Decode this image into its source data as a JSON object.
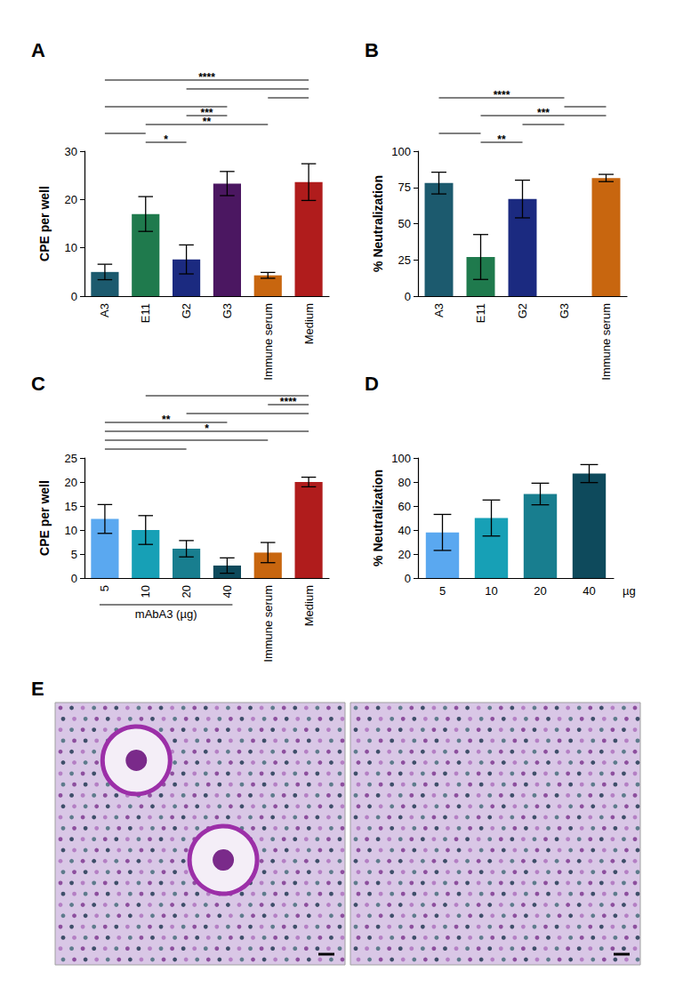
{
  "chart_data": [
    {
      "type": "bar",
      "title": "A",
      "y_label": "CPE per well",
      "categories": [
        "A3",
        "E11",
        "G2",
        "G3",
        "Immune serum",
        "Medium"
      ],
      "values": [
        5.0,
        17.0,
        7.6,
        23.3,
        4.3,
        23.6
      ],
      "errors": [
        1.6,
        3.6,
        3.0,
        2.5,
        0.6,
        3.8
      ],
      "colors": [
        "#1c5a6e",
        "#1f7a4d",
        "#1b2a80",
        "#4b1761",
        "#c8660f",
        "#b01c1c"
      ],
      "ylim": [
        0,
        30
      ],
      "yticks": [
        0,
        10,
        20,
        30
      ],
      "grid": false,
      "significance": [
        {
          "from": "A3",
          "to": "Medium",
          "label": "****"
        },
        {
          "from": "G2",
          "to": "Medium"
        },
        {
          "from": "Immune serum",
          "to": "Medium"
        },
        {
          "from": "A3",
          "to": "G3"
        },
        {
          "from": "G2",
          "to": "G3",
          "label": "***"
        },
        {
          "from": "E11",
          "to": "Immune serum",
          "label": "**"
        },
        {
          "from": "A3",
          "to": "E11"
        },
        {
          "from": "E11",
          "to": "G2",
          "label": "*"
        }
      ]
    },
    {
      "type": "bar",
      "title": "B",
      "y_label": "% Neutralization",
      "categories": [
        "A3",
        "E11",
        "G2",
        "G3",
        "Immune serum"
      ],
      "values": [
        78,
        27,
        67,
        0,
        81.5
      ],
      "errors": [
        7.5,
        15.5,
        13,
        null,
        2.5
      ],
      "colors": [
        "#1c5a6e",
        "#1f7a4d",
        "#1b2a80",
        "#4b1761",
        "#c8660f"
      ],
      "ylim": [
        0,
        100
      ],
      "yticks": [
        0,
        25,
        50,
        75,
        100
      ],
      "grid": false,
      "significance": [
        {
          "from": "A3",
          "to": "G3",
          "label": "****"
        },
        {
          "from": "G3",
          "to": "Immune serum"
        },
        {
          "from": "E11",
          "to": "Immune serum",
          "label": "***"
        },
        {
          "from": "G2",
          "to": "G3"
        },
        {
          "from": "A3",
          "to": "E11"
        },
        {
          "from": "E11",
          "to": "G2",
          "label": "**"
        }
      ]
    },
    {
      "type": "bar",
      "title": "C",
      "y_label": "CPE per well",
      "categories": [
        "5",
        "10",
        "20",
        "40",
        "Immune serum",
        "Medium"
      ],
      "values": [
        12.3,
        10.0,
        6.1,
        2.6,
        5.3,
        20.0
      ],
      "errors": [
        3.0,
        3.0,
        1.7,
        1.6,
        2.1,
        1.0
      ],
      "colors": [
        "#5aa8f0",
        "#17a0b6",
        "#187e8f",
        "#0e4a5c",
        "#c8660f",
        "#b01c1c"
      ],
      "ylim": [
        0,
        25
      ],
      "yticks": [
        0,
        5,
        10,
        15,
        20,
        25
      ],
      "grid": false,
      "group_label": {
        "text": "mAbA3 (µg)",
        "from": "5",
        "to": "40"
      },
      "significance": [
        {
          "from": "10",
          "to": "Medium"
        },
        {
          "from": "Immune serum",
          "to": "Medium",
          "label": "****"
        },
        {
          "from": "20",
          "to": "Medium"
        },
        {
          "from": "5",
          "to": "40",
          "label": "**"
        },
        {
          "from": "5",
          "to": "Medium",
          "label": "*"
        },
        {
          "from": "5",
          "to": "Immune serum"
        },
        {
          "from": "5",
          "to": "20"
        }
      ]
    },
    {
      "type": "bar",
      "title": "D",
      "y_label": "% Neutralization",
      "x_label": "µg",
      "categories": [
        "5",
        "10",
        "20",
        "40"
      ],
      "values": [
        38,
        50,
        70,
        87
      ],
      "errors": [
        15,
        15,
        9,
        7.5
      ],
      "colors": [
        "#5aa8f0",
        "#17a0b6",
        "#187e8f",
        "#0e4a5c"
      ],
      "ylim": [
        0,
        100
      ],
      "yticks": [
        0,
        20,
        40,
        60,
        80,
        100
      ],
      "grid": false
    }
  ],
  "image_panel": {
    "title": "E",
    "images": 2
  }
}
